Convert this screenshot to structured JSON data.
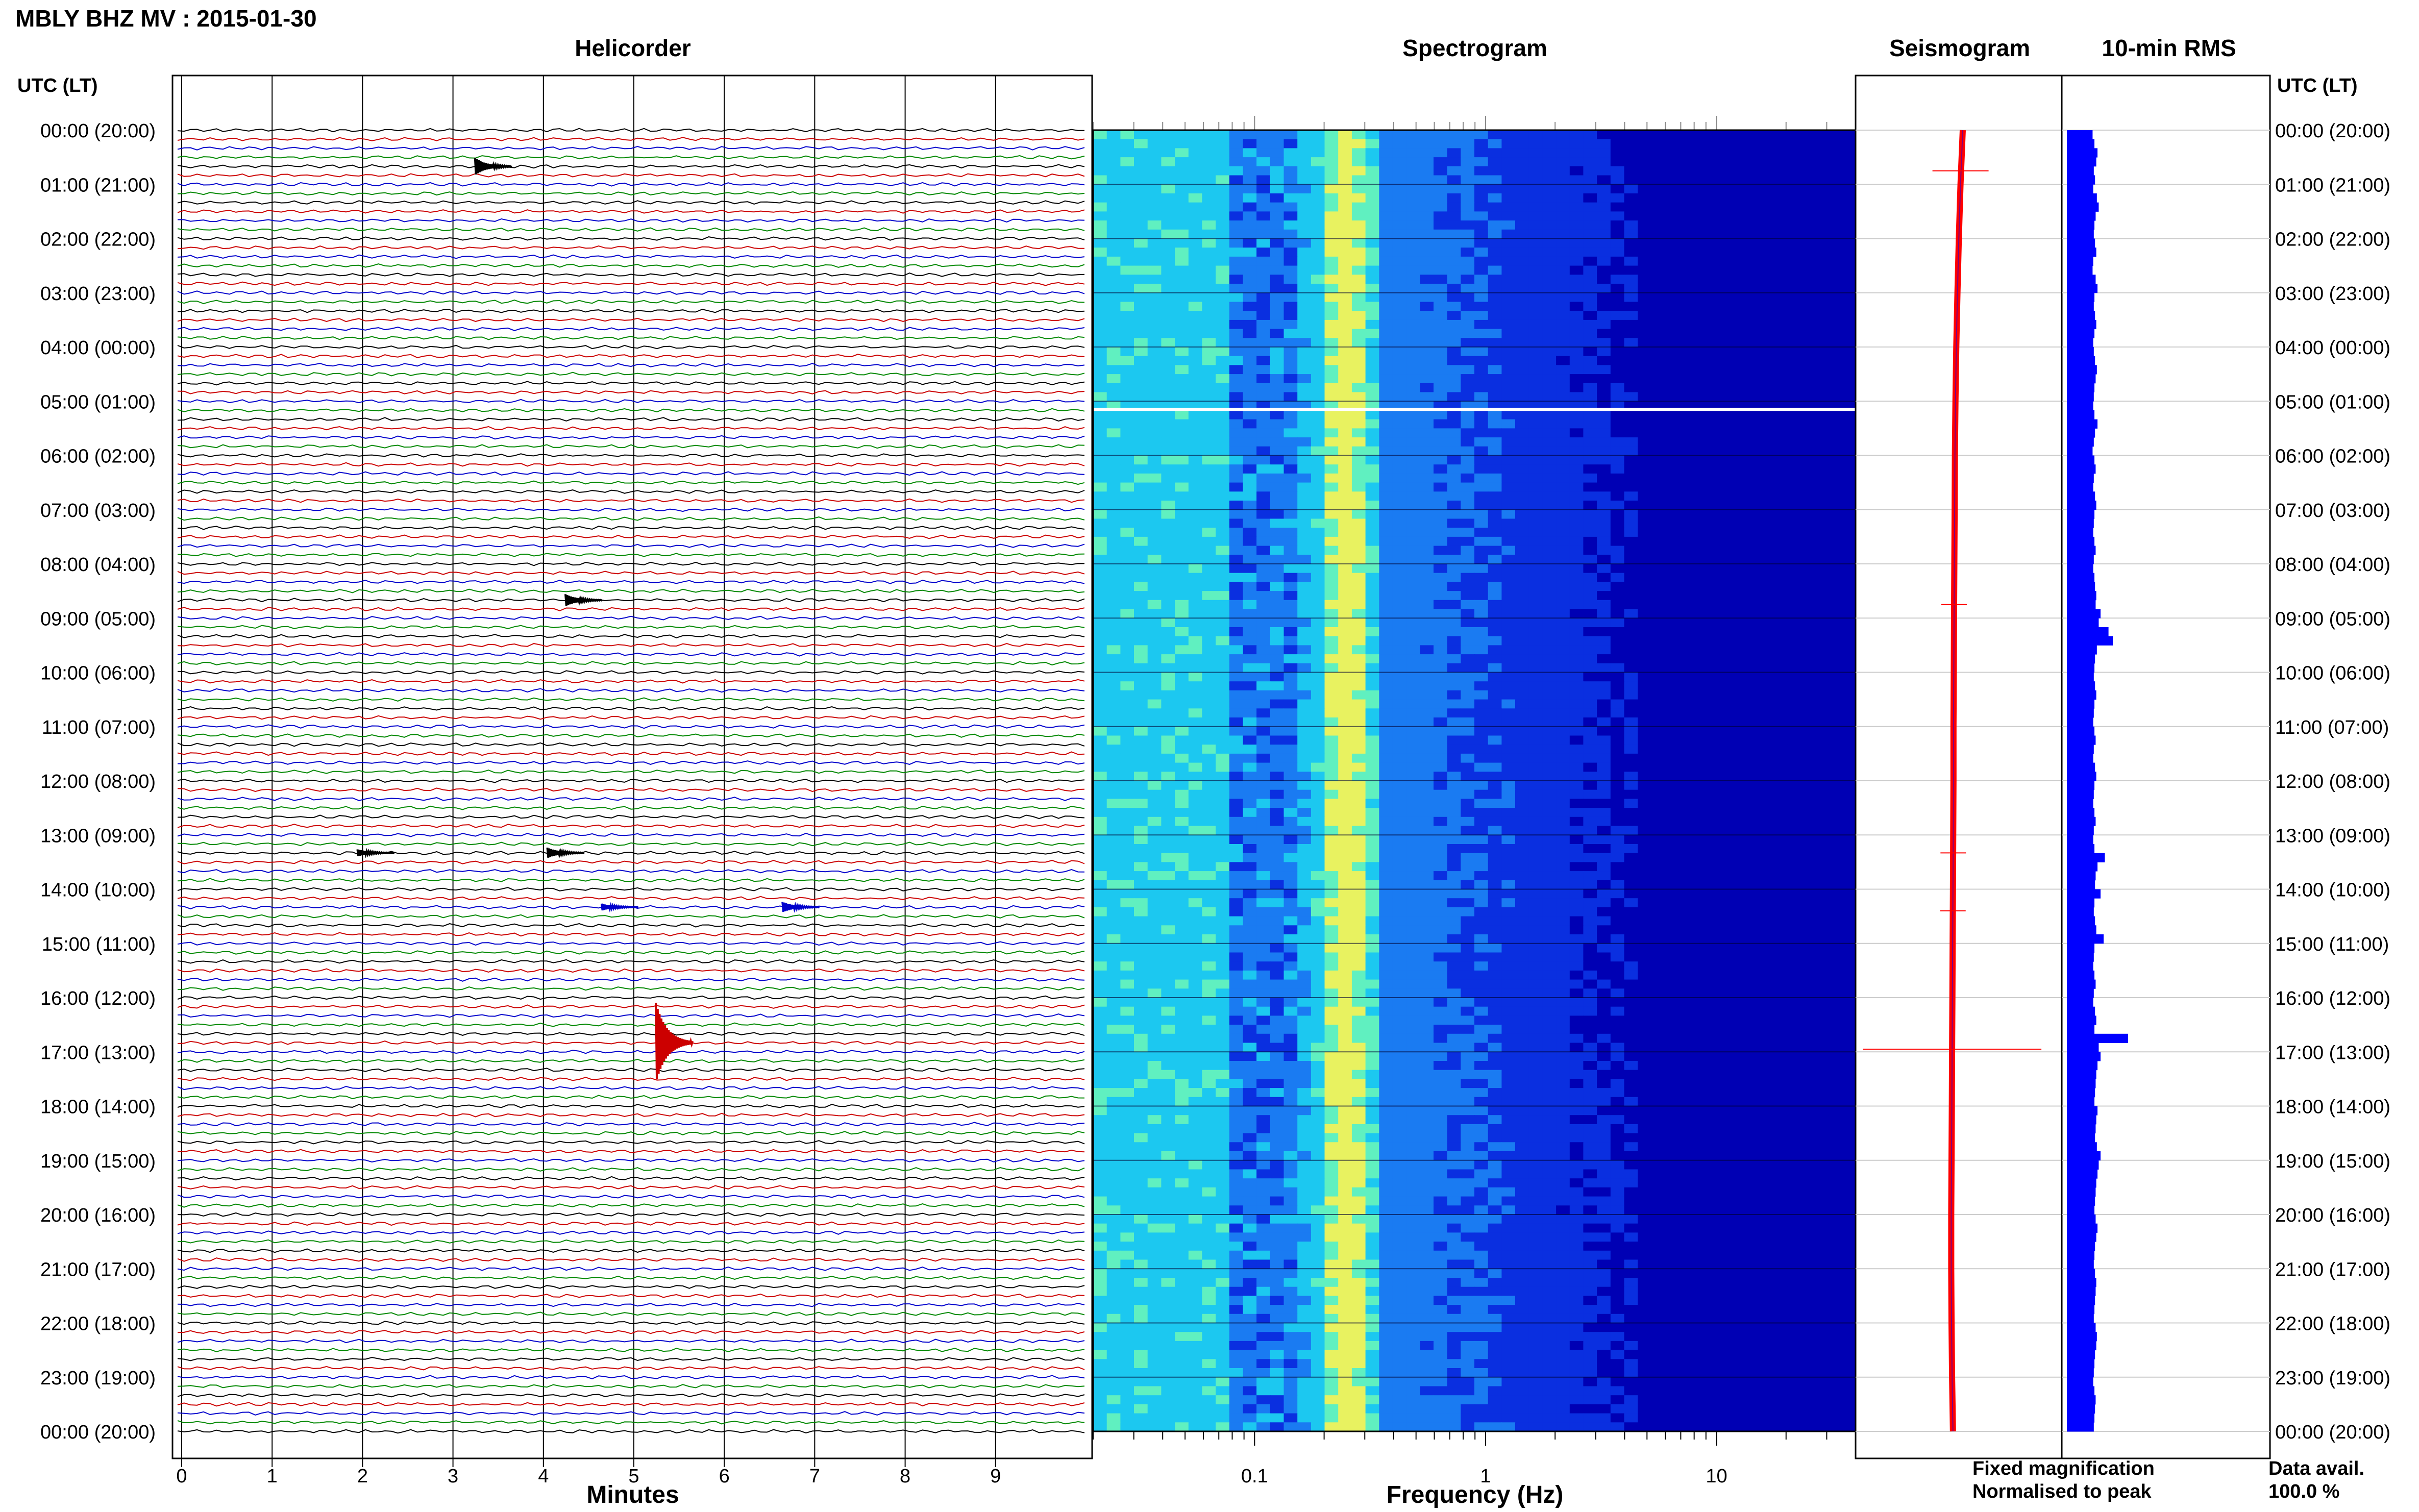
{
  "page": {
    "title": "MBLY BHZ MV : 2015-01-30"
  },
  "panels": {
    "helicorder": "Helicorder",
    "spectrogram": "Spectrogram",
    "seismogram": "Seismogram",
    "rms": "10-min RMS"
  },
  "axes": {
    "left_header": "UTC (LT)",
    "right_header": "UTC (LT)",
    "minutes_label": "Minutes",
    "frequency_label": "Frequency (Hz)"
  },
  "legend": {
    "fixed": "Fixed magnification",
    "normalised": "Normalised to peak",
    "fixed_color": "#0000ff",
    "normalised_color": "#ff0000"
  },
  "data_availability": {
    "label": "Data avail.",
    "value": "100.0 %"
  },
  "chart_data": [
    {
      "type": "helicorder",
      "title": "Helicorder",
      "xlabel": "Minutes",
      "xlim": [
        0,
        10
      ],
      "x_ticks": [
        "0",
        "1",
        "2",
        "3",
        "4",
        "5",
        "6",
        "7",
        "8",
        "9"
      ],
      "time_labels": [
        "00:00 (20:00)",
        "01:00 (21:00)",
        "02:00 (22:00)",
        "03:00 (23:00)",
        "04:00 (00:00)",
        "05:00 (01:00)",
        "06:00 (02:00)",
        "07:00 (03:00)",
        "08:00 (04:00)",
        "09:00 (05:00)",
        "10:00 (06:00)",
        "11:00 (07:00)",
        "12:00 (08:00)",
        "13:00 (09:00)",
        "14:00 (10:00)",
        "15:00 (11:00)",
        "16:00 (12:00)",
        "17:00 (13:00)",
        "18:00 (14:00)",
        "19:00 (15:00)",
        "20:00 (16:00)",
        "21:00 (17:00)",
        "22:00 (18:00)",
        "23:00 (19:00)",
        "00:00 (20:00)"
      ],
      "trace_minutes": 10,
      "trace_colors": [
        "#000000",
        "#cc0000",
        "#0000cc",
        "#008800"
      ],
      "events": [
        {
          "hour": 0.67,
          "minute": 3.3,
          "amp": 0.5
        },
        {
          "hour": 8.67,
          "minute": 4.3,
          "amp": 0.35
        },
        {
          "hour": 13.33,
          "minute": 4.1,
          "amp": 0.3
        },
        {
          "hour": 13.33,
          "minute": 2.0,
          "amp": 0.2
        },
        {
          "hour": 14.33,
          "minute": 6.7,
          "amp": 0.3
        },
        {
          "hour": 14.33,
          "minute": 4.7,
          "amp": 0.2
        },
        {
          "hour": 16.83,
          "minute": 5.3,
          "amp": 2.3
        }
      ]
    },
    {
      "type": "heatmap",
      "title": "Spectrogram",
      "xlabel": "Frequency (Hz)",
      "xscale": "log",
      "xlim": [
        0.02,
        40
      ],
      "x_ticks": [
        "0.1",
        "1",
        "10"
      ],
      "colormap": [
        "#0000b4",
        "#0a2fe0",
        "#1a7bf2",
        "#1cc8f0",
        "#60f0c0",
        "#e8f260"
      ],
      "peak_frequency_hz": 0.25,
      "gap_hour": 5.15
    },
    {
      "type": "line",
      "title": "Seismogram",
      "series": [
        {
          "name": "Fixed magnification",
          "color": "#0000ff"
        },
        {
          "name": "Normalised to peak",
          "color": "#ff0000"
        }
      ],
      "profile_offsets": [
        0.0,
        -0.08,
        -0.14,
        -0.19,
        -0.23,
        -0.26,
        -0.28,
        -0.29,
        -0.3,
        -0.31,
        -0.32,
        -0.33,
        -0.33,
        -0.34,
        -0.35,
        -0.36,
        -0.37,
        -0.38,
        -0.39,
        -0.4,
        -0.41,
        -0.41,
        -0.4,
        -0.38,
        -0.35
      ],
      "spikes_hours": [
        0.75,
        8.75,
        13.33,
        14.4,
        16.95
      ]
    },
    {
      "type": "bar",
      "title": "10-min RMS",
      "xlim": [
        0,
        1
      ],
      "values": [
        0.42,
        0.45,
        0.5,
        0.48,
        0.44,
        0.46,
        0.43,
        0.49,
        0.52,
        0.47,
        0.45,
        0.44,
        0.46,
        0.48,
        0.43,
        0.42,
        0.47,
        0.5,
        0.45,
        0.44,
        0.46,
        0.48,
        0.45,
        0.43,
        0.44,
        0.46,
        0.49,
        0.47,
        0.45,
        0.44,
        0.43,
        0.45,
        0.5,
        0.46,
        0.44,
        0.42,
        0.45,
        0.47,
        0.44,
        0.43,
        0.46,
        0.48,
        0.45,
        0.44,
        0.43,
        0.45,
        0.47,
        0.44,
        0.43,
        0.45,
        0.46,
        0.48,
        0.47,
        0.55,
        0.52,
        0.68,
        0.75,
        0.49,
        0.46,
        0.45,
        0.44,
        0.46,
        0.48,
        0.45,
        0.44,
        0.43,
        0.45,
        0.47,
        0.44,
        0.43,
        0.46,
        0.48,
        0.45,
        0.44,
        0.43,
        0.45,
        0.47,
        0.44,
        0.43,
        0.45,
        0.62,
        0.5,
        0.47,
        0.46,
        0.55,
        0.45,
        0.44,
        0.46,
        0.48,
        0.6,
        0.45,
        0.44,
        0.43,
        0.45,
        0.47,
        0.44,
        0.43,
        0.46,
        0.48,
        0.45,
        1.0,
        0.52,
        0.55,
        0.5,
        0.48,
        0.47,
        0.46,
        0.45,
        0.5,
        0.48,
        0.47,
        0.46,
        0.49,
        0.55,
        0.52,
        0.5,
        0.48,
        0.47,
        0.46,
        0.45,
        0.47,
        0.5,
        0.48,
        0.46,
        0.45,
        0.44,
        0.46,
        0.48,
        0.47,
        0.46,
        0.45,
        0.44,
        0.47,
        0.49,
        0.48,
        0.46,
        0.45,
        0.44,
        0.43,
        0.45,
        0.47,
        0.46,
        0.45,
        0.44
      ]
    }
  ]
}
